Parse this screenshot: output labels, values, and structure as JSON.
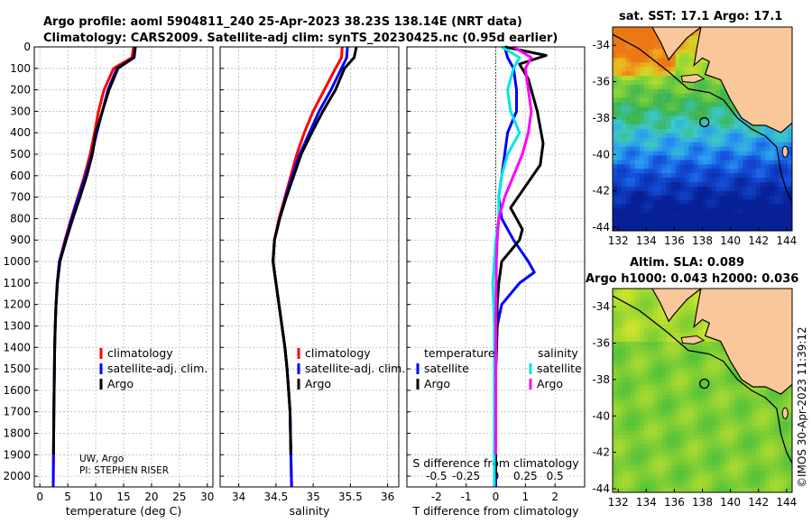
{
  "title_line1": "Argo profile: aoml 5904811_240 25-Apr-2023 38.23S 138.14E (NRT data)",
  "title_line2": "Climatology: CARS2009. Satellite-adj clim: synTS_20230425.nc (0.95d earlier)",
  "credit_line1": "UW, Argo",
  "credit_line2": "PI: STEPHEN RISER",
  "map_top_title": "sat. SST: 17.1 Argo: 17.1",
  "map_bottom_title1": "Altim. SLA: 0.089",
  "map_bottom_title2": "Argo h1000: 0.043 h2000: 0.036",
  "watermark": "©IMOS 30-Apr-2023 11:39:12",
  "colors": {
    "climatology": "#ff0000",
    "satellite": "#0000ff",
    "argo": "#000000",
    "sal_satellite": "#00e5e5",
    "sal_argo": "#ff00ff",
    "land": "#f9c79a",
    "coast": "#000000"
  },
  "legend_profiles": {
    "climatology": "climatology",
    "satellite": "satellite-adj. clim.",
    "argo": "Argo"
  },
  "legend_diff": {
    "temperature": "temperature",
    "salinity": "salinity",
    "satellite": "satellite",
    "argo": "Argo"
  },
  "map_lat_ticks": [
    "-34",
    "-36",
    "-38",
    "-40",
    "-42",
    "-44"
  ],
  "map_lon_ticks": [
    "132",
    "134",
    "136",
    "138",
    "140",
    "142",
    "144"
  ],
  "chart_data": [
    {
      "type": "line",
      "xlabel": "temperature (deg C)",
      "ylabel": "",
      "xlim": [
        -1,
        31
      ],
      "ylim": [
        2050,
        0
      ],
      "xticks": [
        0,
        5,
        10,
        15,
        20,
        25,
        30
      ],
      "yticks": [
        0,
        100,
        200,
        300,
        400,
        500,
        600,
        700,
        800,
        900,
        1000,
        1100,
        1200,
        1300,
        1400,
        1500,
        1600,
        1700,
        1800,
        1900,
        2000
      ],
      "series": [
        {
          "name": "climatology",
          "color": "#ff0000",
          "x": [
            16.8,
            16.5,
            13.2,
            11.5,
            10.5,
            9.8,
            9.0,
            8.0,
            6.8,
            5.6,
            4.5,
            3.5,
            3.1,
            2.9,
            2.75,
            2.65,
            2.6,
            2.55,
            2.5,
            2.45,
            2.4
          ],
          "y": [
            0,
            50,
            100,
            200,
            300,
            400,
            500,
            600,
            700,
            800,
            900,
            1000,
            1100,
            1200,
            1300,
            1400,
            1500,
            1600,
            1700,
            1900,
            2050
          ]
        },
        {
          "name": "satellite-adj. clim.",
          "color": "#0000ff",
          "x": [
            17.1,
            16.9,
            13.8,
            12.2,
            11.2,
            10.2,
            9.3,
            8.2,
            6.9,
            5.7,
            4.6,
            3.5,
            3.1,
            2.9,
            2.75,
            2.65,
            2.6,
            2.55,
            2.5,
            2.45,
            2.4
          ],
          "y": [
            0,
            50,
            100,
            200,
            300,
            400,
            500,
            600,
            700,
            800,
            900,
            1000,
            1100,
            1200,
            1300,
            1400,
            1500,
            1600,
            1700,
            1900,
            2050
          ]
        },
        {
          "name": "Argo",
          "color": "#000000",
          "x": [
            17.1,
            16.8,
            14.0,
            12.4,
            11.2,
            10.0,
            9.4,
            8.4,
            7.2,
            5.9,
            4.7,
            3.6,
            3.15,
            2.9,
            2.75,
            2.65,
            2.6,
            2.55,
            2.5,
            2.45
          ],
          "y": [
            0,
            50,
            100,
            200,
            300,
            400,
            500,
            600,
            700,
            800,
            900,
            1000,
            1100,
            1200,
            1300,
            1400,
            1500,
            1600,
            1700,
            1900
          ]
        }
      ]
    },
    {
      "type": "line",
      "xlabel": "salinity",
      "ylabel": "",
      "xlim": [
        33.75,
        36.15
      ],
      "ylim": [
        2050,
        0
      ],
      "xticks": [
        34,
        34.5,
        35,
        35.5,
        36
      ],
      "xticklabels": [
        "34",
        "34.5",
        "35",
        "35.5",
        "36"
      ],
      "yticks": [
        0,
        100,
        200,
        300,
        400,
        500,
        600,
        700,
        800,
        900,
        1000,
        1100,
        1200,
        1300,
        1400,
        1500,
        1600,
        1700,
        1800,
        1900,
        2000
      ],
      "series": [
        {
          "name": "climatology",
          "color": "#ff0000",
          "x": [
            35.39,
            35.38,
            35.3,
            35.15,
            35.0,
            34.88,
            34.78,
            34.7,
            34.62,
            34.54,
            34.48,
            34.46,
            34.5,
            34.54,
            34.58,
            34.62,
            34.65,
            34.67,
            34.69,
            34.7,
            34.71
          ],
          "y": [
            0,
            50,
            100,
            200,
            300,
            400,
            500,
            600,
            700,
            800,
            900,
            1000,
            1100,
            1200,
            1300,
            1400,
            1500,
            1600,
            1700,
            1900,
            2050
          ]
        },
        {
          "name": "satellite-adj. clim.",
          "color": "#0000ff",
          "x": [
            35.46,
            35.45,
            35.38,
            35.24,
            35.08,
            34.95,
            34.82,
            34.72,
            34.63,
            34.55,
            34.48,
            34.46,
            34.5,
            34.54,
            34.58,
            34.62,
            34.65,
            34.67,
            34.69,
            34.7,
            34.71
          ],
          "y": [
            0,
            50,
            100,
            200,
            300,
            400,
            500,
            600,
            700,
            800,
            900,
            1000,
            1100,
            1200,
            1300,
            1400,
            1500,
            1600,
            1700,
            1900,
            2050
          ]
        },
        {
          "name": "Argo",
          "color": "#000000",
          "x": [
            35.58,
            35.55,
            35.42,
            35.3,
            35.13,
            34.98,
            34.84,
            34.74,
            34.64,
            34.55,
            34.48,
            34.46,
            34.5,
            34.54,
            34.58,
            34.62,
            34.65,
            34.67,
            34.69,
            34.7
          ],
          "y": [
            0,
            50,
            100,
            200,
            300,
            400,
            500,
            600,
            700,
            800,
            900,
            1000,
            1100,
            1200,
            1300,
            1400,
            1500,
            1600,
            1700,
            1900
          ]
        }
      ]
    },
    {
      "type": "line",
      "xlabel": "T difference from climatology",
      "top_label": "S difference from climatology",
      "xlim": [
        -3,
        3
      ],
      "ylim": [
        2050,
        0
      ],
      "xticks": [
        -2,
        -1,
        0,
        1,
        2
      ],
      "s_ticklabels": [
        "-0.5",
        "-0.25",
        "0",
        "0.25",
        "0.5"
      ],
      "yticks": [
        0,
        100,
        200,
        300,
        400,
        500,
        600,
        700,
        800,
        900,
        1000,
        1100,
        1200,
        1300,
        1400,
        1500,
        1600,
        1700,
        1800,
        1900,
        2000
      ],
      "series": [
        {
          "name": "temperature satellite",
          "color": "#0000ff",
          "x": [
            0.3,
            0.4,
            0.6,
            0.7,
            0.7,
            0.4,
            0.3,
            0.2,
            0.1,
            0.2,
            0.6,
            1.1,
            1.3,
            0.8,
            0.2,
            0.05,
            0.0,
            0.0,
            0.0,
            0.0
          ],
          "y": [
            0,
            50,
            100,
            200,
            300,
            400,
            500,
            600,
            700,
            800,
            900,
            1000,
            1050,
            1100,
            1200,
            1300,
            1500,
            1700,
            1900,
            2050
          ]
        },
        {
          "name": "temperature Argo",
          "color": "#000000",
          "x": [
            0.3,
            1.7,
            0.8,
            1.1,
            1.4,
            1.6,
            1.5,
            1.0,
            0.5,
            0.9,
            0.8,
            0.2,
            0.1,
            0.05,
            0.05,
            0.0,
            0.0,
            0.0,
            0.0
          ],
          "y": [
            0,
            40,
            80,
            150,
            300,
            450,
            550,
            650,
            750,
            850,
            900,
            1000,
            1100,
            1200,
            1300,
            1500,
            1700,
            1900,
            2000
          ]
        },
        {
          "name": "salinity satellite",
          "color": "#00e5e5",
          "x": [
            0.2,
            0.8,
            0.6,
            0.4,
            0.5,
            0.8,
            0.4,
            0.2,
            0.1,
            0.1,
            0.0,
            -0.1,
            -0.05,
            -0.05,
            -0.05,
            -0.05,
            -0.05
          ],
          "y": [
            0,
            50,
            100,
            200,
            300,
            400,
            500,
            600,
            700,
            800,
            900,
            1100,
            1300,
            1500,
            1700,
            1900,
            2050
          ]
        },
        {
          "name": "salinity Argo",
          "color": "#ff00ff",
          "x": [
            0.6,
            1.2,
            1.0,
            1.1,
            1.2,
            1.1,
            0.9,
            0.6,
            0.3,
            0.1,
            0.05,
            0.02,
            0.0,
            0.0,
            0.0
          ],
          "y": [
            0,
            50,
            100,
            200,
            300,
            400,
            500,
            600,
            700,
            800,
            900,
            1000,
            1300,
            1600,
            1900
          ]
        }
      ]
    }
  ]
}
